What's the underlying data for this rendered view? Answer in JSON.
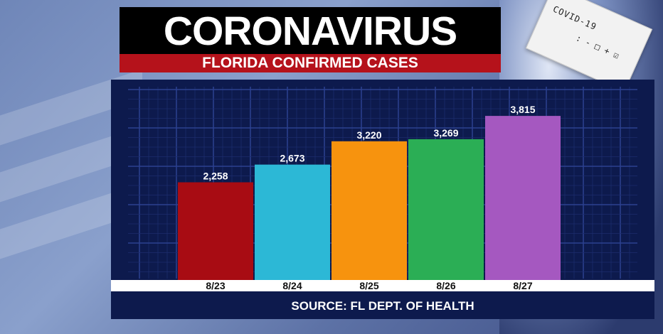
{
  "banner": {
    "title": "CORONAVIRUS",
    "subtitle": "FLORIDA CONFIRMED CASES"
  },
  "test_card": {
    "label": "COVID-19",
    "marks": ": - □ + ☑"
  },
  "source": "SOURCE: FL DEPT. OF HEALTH",
  "chart_data": {
    "type": "bar",
    "categories": [
      "8/23",
      "8/24",
      "8/25",
      "8/26",
      "8/27"
    ],
    "values": [
      2258,
      2673,
      3220,
      3269,
      3815
    ],
    "value_labels": [
      "2,258",
      "2,673",
      "3,220",
      "3,269",
      "3,815"
    ],
    "colors": [
      "#a80c13",
      "#2cb8d6",
      "#f7930e",
      "#2bae55",
      "#a558c0"
    ],
    "ylim": [
      0,
      4500
    ],
    "grid": true,
    "legend": "none"
  }
}
